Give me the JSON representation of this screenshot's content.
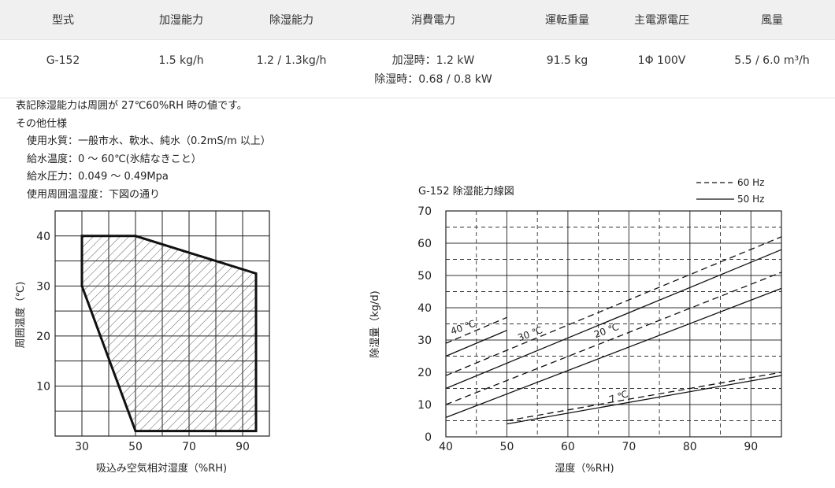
{
  "spec_table": {
    "headers": [
      "型式",
      "加湿能力",
      "除湿能力",
      "消費電力",
      "運転重量",
      "主電源電圧",
      "風量"
    ],
    "row": {
      "model": "G-152",
      "humidify": "1.5 kg/h",
      "dehumidify": "1.2 / 1.3kg/h",
      "power_humidify": "加湿時：1.2 kW",
      "power_dehumidify": "除湿時：0.68 / 0.8 kW",
      "weight": "91.5 kg",
      "voltage": "1Φ 100V",
      "airflow": "5.5 / 6.0 m³/h"
    }
  },
  "notes": {
    "line1": "表記除湿能力は周囲が 27℃60%RH 時の値です。",
    "line2": "その他仕様",
    "water_quality": "使用水質：一般市水、軟水、純水（0.2mS/m 以上）",
    "water_temp": "給水温度：0 ～ 60℃(氷結なきこと）",
    "water_pressure": "給水圧力：0.049 ～ 0.49Mpa",
    "ambient": "使用周囲温湿度：下図の通り"
  },
  "chart_data": [
    {
      "type": "area",
      "title": "",
      "xlabel": "吸込み空気相対湿度（%RH)",
      "ylabel": "周囲温度（℃)",
      "xlim": [
        20,
        100
      ],
      "ylim": [
        0,
        45
      ],
      "x_ticks": [
        "30",
        "50",
        "70",
        "90"
      ],
      "y_ticks": [
        "10",
        "20",
        "30",
        "40"
      ],
      "grid": true,
      "region": [
        [
          30,
          40
        ],
        [
          50,
          40
        ],
        [
          95,
          32.5
        ],
        [
          95,
          1
        ],
        [
          50,
          1
        ],
        [
          30,
          30
        ]
      ]
    },
    {
      "type": "line",
      "title": "G-152 除湿能力線図",
      "xlabel": "湿度（%RH)",
      "ylabel": "除湿量（kg/d)",
      "xlim": [
        40,
        95
      ],
      "ylim": [
        0,
        70
      ],
      "x_ticks": [
        "40",
        "50",
        "60",
        "70",
        "80",
        "90"
      ],
      "y_ticks": [
        "0",
        "10",
        "20",
        "30",
        "40",
        "50",
        "60",
        "70"
      ],
      "grid": true,
      "legend": [
        {
          "label": "60 Hz",
          "style": "dashed"
        },
        {
          "label": "50 Hz",
          "style": "solid"
        }
      ],
      "legend_position": "top-right",
      "series": [
        {
          "name": "40 ℃",
          "hz": "60 Hz",
          "style": "dashed",
          "points": [
            [
              40,
              29
            ],
            [
              50,
              37
            ]
          ]
        },
        {
          "name": "40 ℃",
          "hz": "50 Hz",
          "style": "solid",
          "points": [
            [
              40,
              25
            ],
            [
              50,
              33
            ]
          ]
        },
        {
          "name": "30 ℃",
          "hz": "60 Hz",
          "style": "dashed",
          "points": [
            [
              40,
              19
            ],
            [
              95,
              62
            ]
          ]
        },
        {
          "name": "30 ℃",
          "hz": "50 Hz",
          "style": "solid",
          "points": [
            [
              40,
              15
            ],
            [
              95,
              58
            ]
          ]
        },
        {
          "name": "20 ℃",
          "hz": "60 Hz",
          "style": "dashed",
          "points": [
            [
              40,
              10
            ],
            [
              95,
              51
            ]
          ]
        },
        {
          "name": "20 ℃",
          "hz": "50 Hz",
          "style": "solid",
          "points": [
            [
              40,
              6
            ],
            [
              95,
              46
            ]
          ]
        },
        {
          "name": "7 ℃",
          "hz": "60 Hz",
          "style": "dashed",
          "points": [
            [
              50,
              5
            ],
            [
              95,
              20
            ]
          ]
        },
        {
          "name": "7 ℃",
          "hz": "50 Hz",
          "style": "solid",
          "points": [
            [
              50,
              4
            ],
            [
              95,
              19
            ]
          ]
        }
      ],
      "labels": [
        {
          "text": "40 ℃",
          "x": 43,
          "y": 33
        },
        {
          "text": "30 ℃",
          "x": 54,
          "y": 31
        },
        {
          "text": "20 ℃",
          "x": 66.5,
          "y": 32
        },
        {
          "text": "7 ℃",
          "x": 68.5,
          "y": 11.5
        }
      ]
    }
  ]
}
